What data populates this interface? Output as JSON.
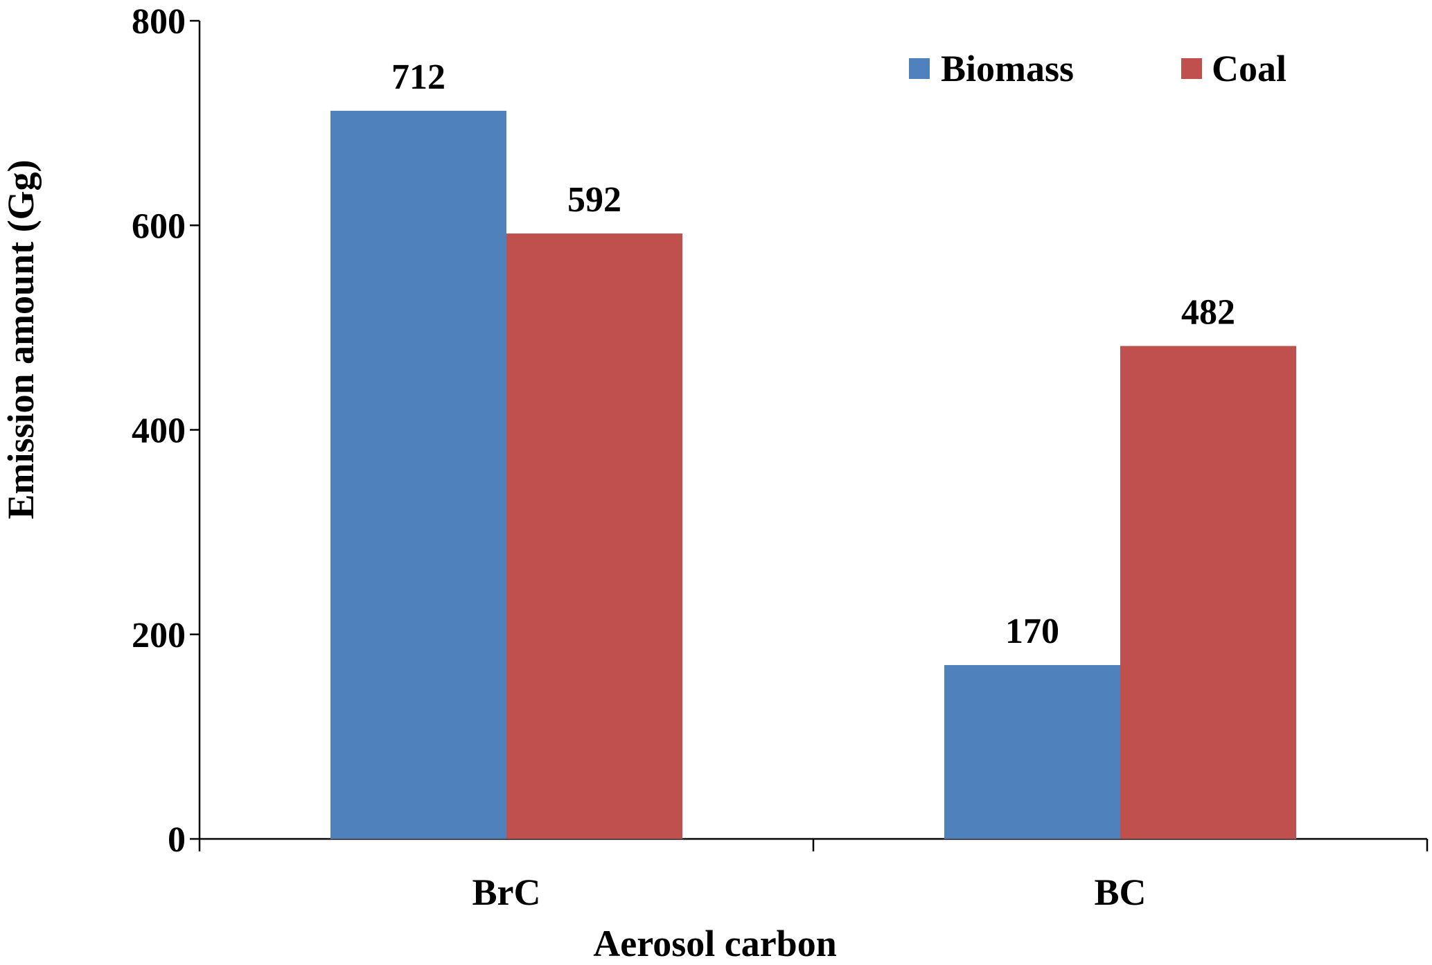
{
  "chart_data": {
    "type": "bar",
    "categories": [
      "BrC",
      "BC"
    ],
    "series": [
      {
        "name": "Biomass",
        "values": [
          712,
          170
        ],
        "color": "#4F81BD"
      },
      {
        "name": "Coal",
        "values": [
          592,
          482
        ],
        "color": "#C0504D"
      }
    ],
    "xlabel": "Aerosol carbon",
    "ylabel": "Emission amount (Gg)",
    "ylim": [
      0,
      800
    ],
    "yticks": [
      0,
      200,
      400,
      600,
      800
    ],
    "grid": false,
    "legend_position": "top-right",
    "data_labels": true
  }
}
